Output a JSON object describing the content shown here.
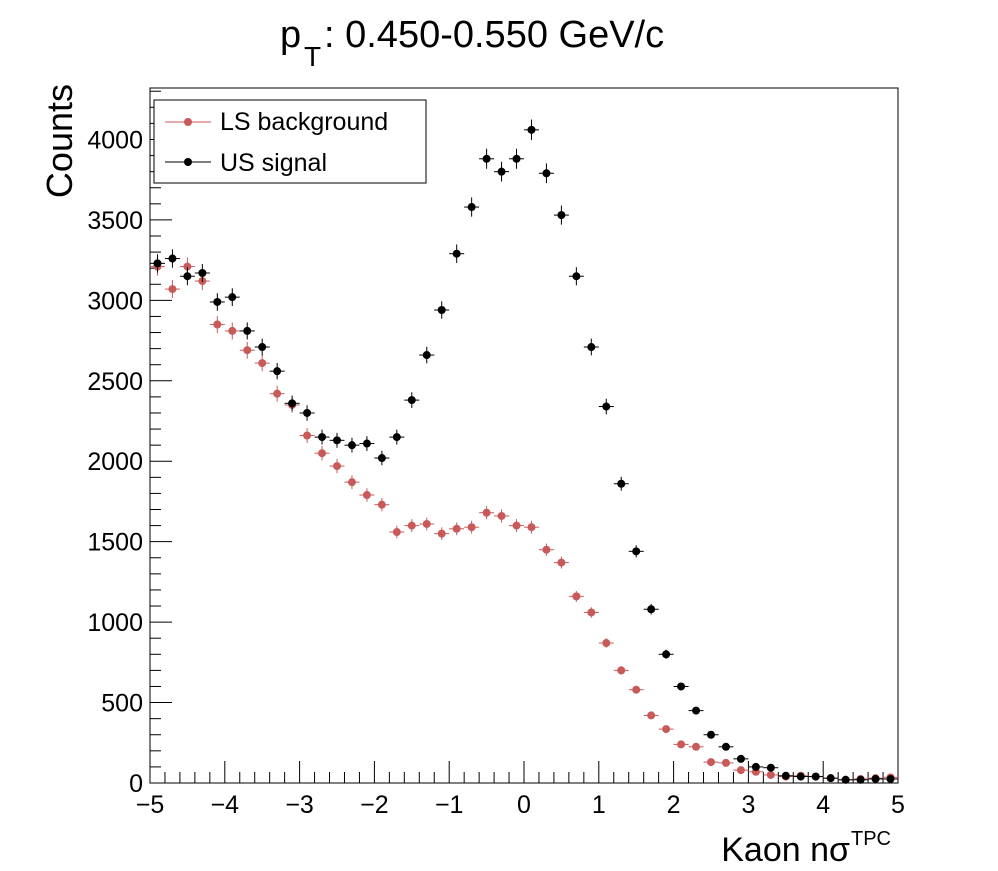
{
  "chart_data": {
    "type": "scatter",
    "title_main": "p",
    "title_sub": "T",
    "title_rest": ": 0.450-0.550 GeV/c",
    "xlabel_main": "Kaon nσ",
    "xlabel_sup": "TPC",
    "ylabel": "Counts",
    "xlim": [
      -5,
      5
    ],
    "ylim": [
      0,
      4320
    ],
    "x_ticks": [
      -5,
      -4,
      -3,
      -2,
      -1,
      0,
      1,
      2,
      3,
      4,
      5
    ],
    "x_tick_labels": [
      "−5",
      "−4",
      "−3",
      "−2",
      "−1",
      "0",
      "1",
      "2",
      "3",
      "4",
      "5"
    ],
    "y_ticks": [
      0,
      500,
      1000,
      1500,
      2000,
      2500,
      3000,
      3500,
      4000
    ],
    "y_tick_labels": [
      "0",
      "500",
      "1000",
      "1500",
      "2000",
      "2500",
      "3000",
      "3500",
      "4000"
    ],
    "legend_position": "top-left",
    "bin_width": 0.2,
    "x": [
      -4.9,
      -4.7,
      -4.5,
      -4.3,
      -4.1,
      -3.9,
      -3.7,
      -3.5,
      -3.3,
      -3.1,
      -2.9,
      -2.7,
      -2.5,
      -2.3,
      -2.1,
      -1.9,
      -1.7,
      -1.5,
      -1.3,
      -1.1,
      -0.9,
      -0.7,
      -0.5,
      -0.3,
      -0.1,
      0.1,
      0.3,
      0.5,
      0.7,
      0.9,
      1.1,
      1.3,
      1.5,
      1.7,
      1.9,
      2.1,
      2.3,
      2.5,
      2.7,
      2.9,
      3.1,
      3.3,
      3.5,
      3.7,
      3.9,
      4.1,
      4.3,
      4.5,
      4.7,
      4.9
    ],
    "series": [
      {
        "name": "LS background",
        "color": "#c85a5a",
        "values": [
          3210,
          3070,
          3210,
          3120,
          2850,
          2810,
          2690,
          2610,
          2420,
          2350,
          2160,
          2050,
          1970,
          1870,
          1790,
          1730,
          1560,
          1600,
          1610,
          1550,
          1580,
          1590,
          1680,
          1660,
          1600,
          1590,
          1450,
          1370,
          1160,
          1060,
          870,
          700,
          580,
          420,
          335,
          240,
          225,
          130,
          125,
          80,
          70,
          50,
          40,
          45,
          40,
          30,
          20,
          25,
          30,
          35
        ]
      },
      {
        "name": "US signal",
        "color": "#000000",
        "values": [
          3230,
          3260,
          3150,
          3170,
          2990,
          3020,
          2810,
          2710,
          2560,
          2360,
          2300,
          2150,
          2130,
          2100,
          2110,
          2020,
          2150,
          2380,
          2660,
          2940,
          3290,
          3580,
          3880,
          3800,
          3880,
          4060,
          3790,
          3530,
          3150,
          2710,
          2340,
          1860,
          1440,
          1080,
          800,
          600,
          450,
          300,
          225,
          150,
          100,
          95,
          45,
          40,
          40,
          30,
          20,
          20,
          25,
          25
        ]
      }
    ]
  }
}
